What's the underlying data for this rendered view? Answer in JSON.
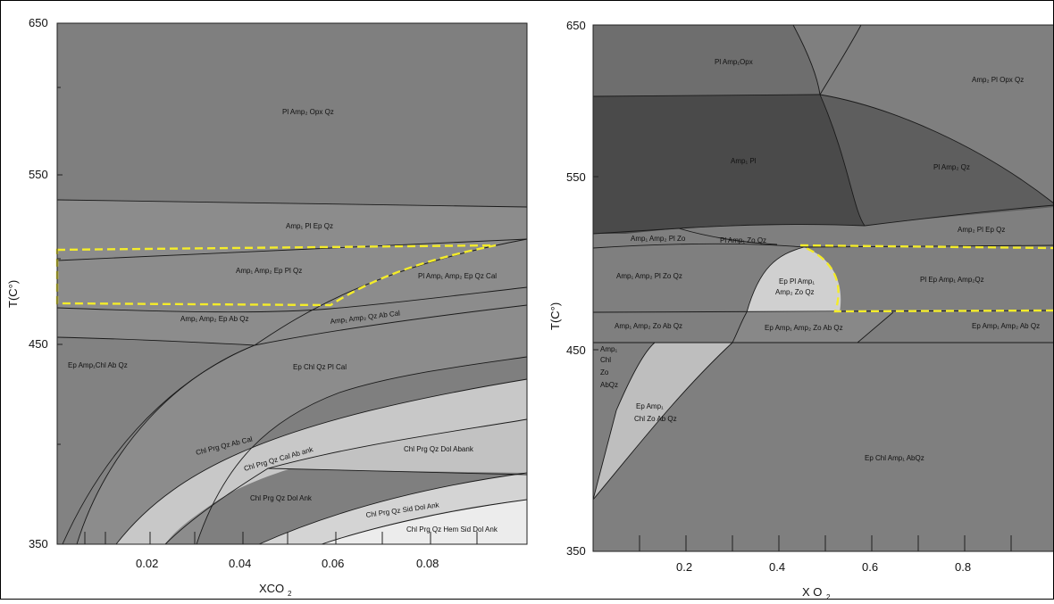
{
  "colors": {
    "field_dark": "#7f7f7f",
    "field_mid": "#8f8f8f",
    "field_light": "#c9c9c9",
    "field_white": "#ececec",
    "field_darkest": "#4a4a4a",
    "highlight": "#f4ec2a"
  },
  "left_panel": {
    "x_axis_label": "XCO",
    "x_axis_sub": "2",
    "y_axis_label": "T(C°)",
    "y_ticks": [
      "650",
      "550",
      "450",
      "350"
    ],
    "x_ticks": [
      "0.02",
      "0.04",
      "0.06",
      "0.08"
    ],
    "fields": {
      "pl_amp_opx_qz": "Pl Amp₂ Opx Qz",
      "amp_pl_ep_qz": "Amp₁ Pl Ep Qz",
      "amp_amp_ep_pl_qz": "Amp₁ Amp₂ Ep Pl Qz",
      "pl_amp_amp_ep_qz_cal": "Pl Amp₁ Amp₂ Ep Qz Cal",
      "amp_amp_ep_ab_qz": "Amp₁ Amp₂ Ep Ab Qz",
      "amp_amp_qz_ab_cal": "Amp₁ Amp₂ Qz Ab Cal",
      "ep_amp_chl_ab_qz": "Ep Amp₁Chl Ab Qz",
      "ep_chl_qz_pl_cal": "Ep Chl Qz Pl Cal",
      "chl_prg_qz_ab_cal": "Chl Prg Qz Ab Cal",
      "chl_prg_qz_cal_ab_ank": "Chl Prg Qz Cal Ab ank",
      "chl_prg_qz_dol_abank": "Chl Prg Qz Dol Abank",
      "chl_prg_qz_dol_ank": "Chl Prg Qz Dol Ank",
      "chl_prg_qz_sid_dol_ank": "Chl Prg Qz Sid Dol Ank",
      "chl_prg_qz_hem_sid_dol_ank": "Chl Prg Qz Hem Sid Dol Ank"
    }
  },
  "right_panel": {
    "x_axis_label": "X O",
    "x_axis_sub": "2",
    "y_axis_label": "T(C°)",
    "y_ticks": [
      "650",
      "550",
      "450",
      "350"
    ],
    "x_ticks": [
      "0.2",
      "0.4",
      "0.6",
      "0.8"
    ],
    "fields": {
      "pl_amp_opx": "Pl Amp₁Opx",
      "amp_pl_opx_qz": "Amp₂ Pl Opx Qz",
      "amp_pl": "Amp₁ Pl",
      "pl_amp_qz": "Pl Amp₂ Qz",
      "amp_pl_ep_qz": "Amp₂ Pl Ep Qz",
      "amp_amp_pl_zo": "Amp₁ Amp₂ Pl Zo",
      "pl_amp_zo_qz": "Pl Amp₁ Zo Qz",
      "amp_amp_pl_zo_qz": "Amp₁ Amp₂ Pl Zo Qz",
      "ep_pl_amp_line1": "Ep Pl Amp₁",
      "ep_pl_amp_line2": "Amp₂ Zo Qz",
      "pl_ep_amp_amp_qz": "Pl Ep Amp₁ Amp₂Qz",
      "amp_amp_zo_ab_qz": "Amp₁ Amp₂ Zo Ab Qz",
      "ep_amp_amp_zo_ab_qz": "Ep Amp₁ Amp₂ Zo Ab Qz",
      "ep_amp_amp_ab_qz": "Ep Amp₁ Amp₂ Ab Qz",
      "amp_chl_zo_abqz_l1": "Amp₁",
      "amp_chl_zo_abqz_l2": "Chl",
      "amp_chl_zo_abqz_l3": "Zo",
      "amp_chl_zo_abqz_l4": "AbQz",
      "ep_amp_chl_zo_ab_qz_l1": "Ep Amp₁",
      "ep_amp_chl_zo_ab_qz_l2": "Chl Zo Ab Qz",
      "ep_chl_amp_abqz": "Ep Chl Amp₁ AbQz"
    }
  }
}
